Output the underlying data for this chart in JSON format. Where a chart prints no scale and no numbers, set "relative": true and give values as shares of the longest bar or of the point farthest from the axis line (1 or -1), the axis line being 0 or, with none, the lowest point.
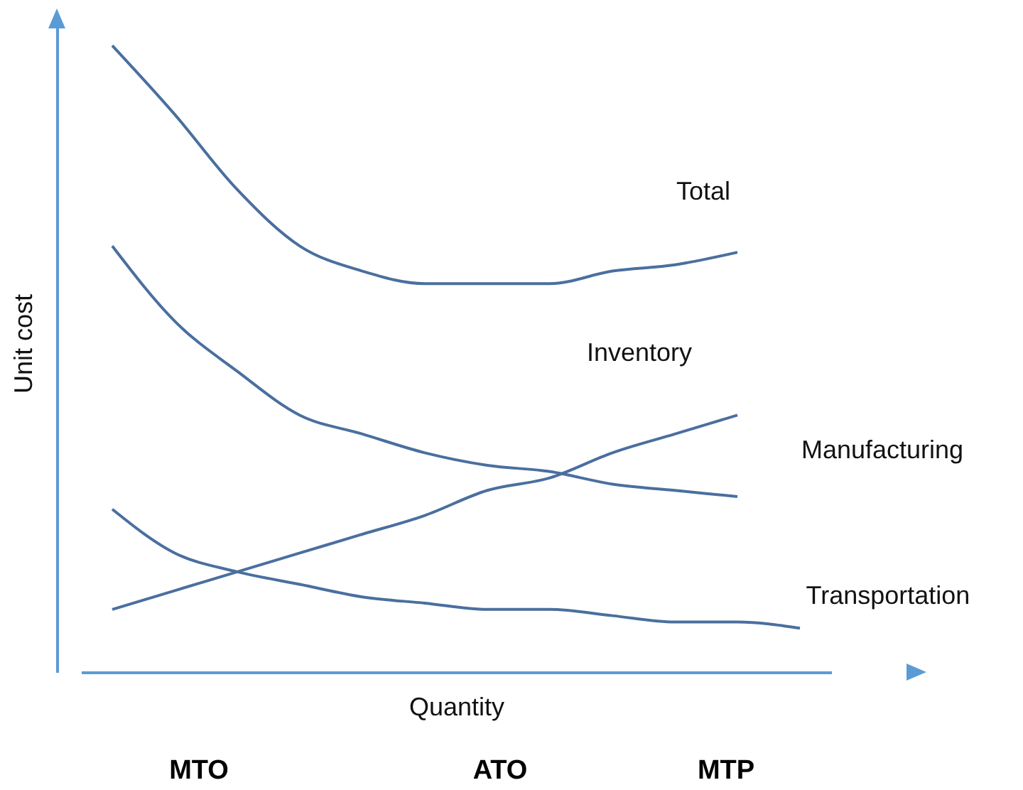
{
  "chart_data": {
    "type": "line",
    "relative": true,
    "xlabel": "Quantity",
    "ylabel": "Unit cost",
    "tick_labels": false,
    "categories": [
      null,
      null,
      null,
      null,
      null,
      null,
      null,
      null,
      null,
      null,
      null,
      null
    ],
    "series": [
      {
        "name": "Total",
        "color": "#4a6f9f",
        "values": [
          1.0,
          0.89,
          0.77,
          0.68,
          0.64,
          0.62,
          0.62,
          0.62,
          0.64,
          0.65,
          0.67,
          null
        ]
      },
      {
        "name": "Inventory",
        "color": "#4a6f9f",
        "values": [
          0.1,
          0.13,
          0.16,
          0.19,
          0.22,
          0.25,
          0.29,
          0.31,
          0.35,
          0.38,
          0.41,
          null
        ]
      },
      {
        "name": "Manufacturing",
        "color": "#4a6f9f",
        "values": [
          0.68,
          0.56,
          0.48,
          0.41,
          0.38,
          0.35,
          0.33,
          0.32,
          0.3,
          0.29,
          0.28,
          null
        ]
      },
      {
        "name": "Transportation",
        "color": "#4a6f9f",
        "values": [
          0.26,
          0.19,
          0.16,
          0.14,
          0.12,
          0.11,
          0.1,
          0.1,
          0.09,
          0.08,
          0.08,
          0.07
        ]
      }
    ],
    "annotations": [
      "MTO",
      "ATO",
      "MTP"
    ]
  }
}
